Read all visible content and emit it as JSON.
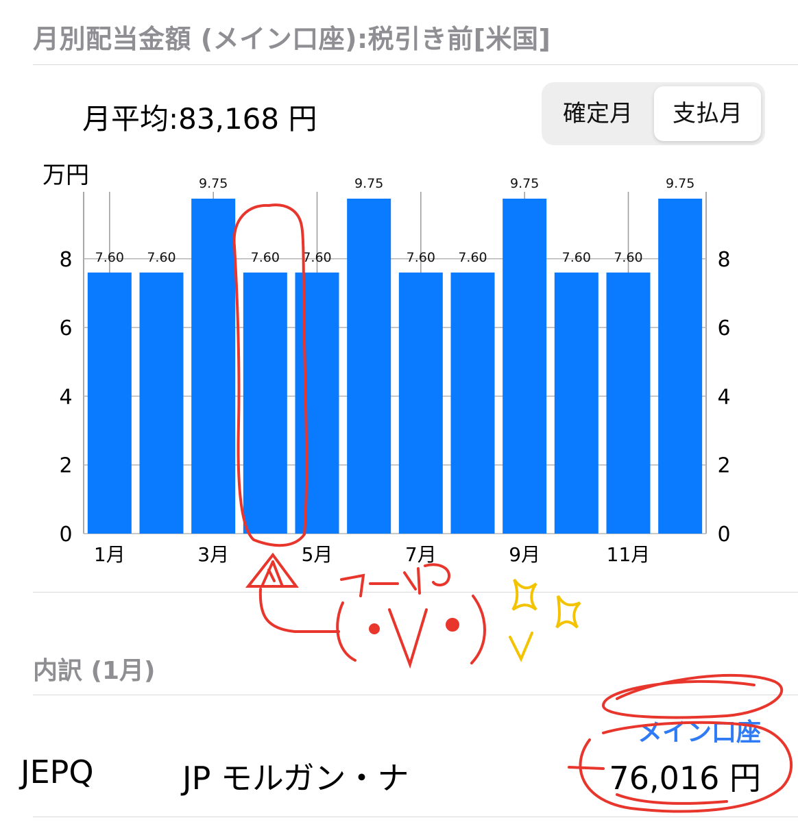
{
  "header": {
    "title": "月別配当金額 (メイン口座):税引き前[米国]"
  },
  "summary": {
    "monthly_average": "月平均:83,168 円"
  },
  "toggle": {
    "confirm_label": "確定月",
    "pay_label": "支払月"
  },
  "unit_label": "万円",
  "colors": {
    "bar": "#0a7aff",
    "accent": "#2f7bf6",
    "annotation_red": "#e8362d",
    "annotation_yellow": "#f3c300"
  },
  "chart_data": {
    "type": "bar",
    "categories": [
      "1月",
      "2月",
      "3月",
      "4月",
      "5月",
      "6月",
      "7月",
      "8月",
      "9月",
      "10月",
      "11月",
      "12月"
    ],
    "x_tick_labels": [
      "1月",
      "",
      "3月",
      "",
      "5月",
      "",
      "7月",
      "",
      "9月",
      "",
      "11月",
      ""
    ],
    "values": [
      7.6,
      7.6,
      9.75,
      7.6,
      7.6,
      9.75,
      7.6,
      7.6,
      9.75,
      7.6,
      7.6,
      9.75
    ],
    "value_labels": [
      "7.60",
      "7.60",
      "9.75",
      "7.60",
      "7.60",
      "9.75",
      "7.60",
      "7.60",
      "9.75",
      "7.60",
      "7.60",
      "9.75"
    ],
    "ylabel": "万円",
    "ylim": [
      0,
      9.75
    ],
    "yticks": [
      0,
      2,
      4,
      6,
      8
    ],
    "ytick_labels": [
      "0",
      "2",
      "4",
      "6",
      "8"
    ],
    "grid": true,
    "axes": "left and right"
  },
  "breakdown": {
    "title": "内訳 (1月)",
    "rows": [
      {
        "ticker": "JEPQ",
        "name": "JP モルガン・ナ",
        "account": "メイン口座",
        "amount": "76,016 円"
      }
    ]
  },
  "annotations": {
    "handwriting_text": "ワーイ♪ (●∀●) ✨✨"
  }
}
